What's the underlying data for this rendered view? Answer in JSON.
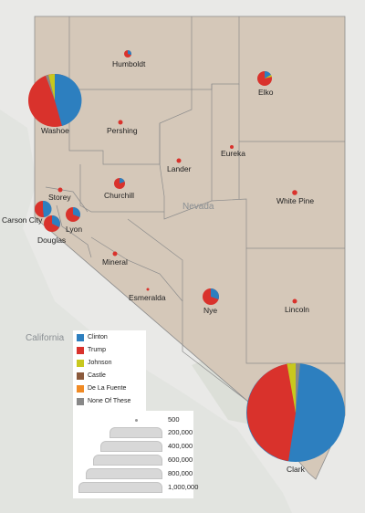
{
  "map": {
    "state_label": "Nevada",
    "neighbor_label": "California"
  },
  "colors": {
    "clinton": "#2d7fbf",
    "trump": "#d9322c",
    "johnson": "#c8c81e",
    "castle": "#8b5a3c",
    "de_la_fuente": "#f08a24",
    "none_of_these": "#888888"
  },
  "legend": {
    "items": [
      {
        "label": "Clinton",
        "color": "#2d7fbf"
      },
      {
        "label": "Trump",
        "color": "#d9322c"
      },
      {
        "label": "Johnson",
        "color": "#c8c81e"
      },
      {
        "label": "Castle",
        "color": "#8b5a3c"
      },
      {
        "label": "De La Fuente",
        "color": "#f08a24"
      },
      {
        "label": "None Of These",
        "color": "#888888"
      }
    ]
  },
  "size_legend": {
    "items": [
      "500",
      "200,000",
      "400,000",
      "600,000",
      "800,000",
      "1,000,000"
    ]
  },
  "counties": [
    {
      "name": "Humboldt"
    },
    {
      "name": "Elko"
    },
    {
      "name": "Washoe"
    },
    {
      "name": "Pershing"
    },
    {
      "name": "Lander"
    },
    {
      "name": "Eureka"
    },
    {
      "name": "Churchill"
    },
    {
      "name": "Storey"
    },
    {
      "name": "White Pine"
    },
    {
      "name": "Carson City"
    },
    {
      "name": "Lyon"
    },
    {
      "name": "Douglas"
    },
    {
      "name": "Mineral"
    },
    {
      "name": "Esmeralda"
    },
    {
      "name": "Nye"
    },
    {
      "name": "Lincoln"
    },
    {
      "name": "Clark"
    }
  ]
}
